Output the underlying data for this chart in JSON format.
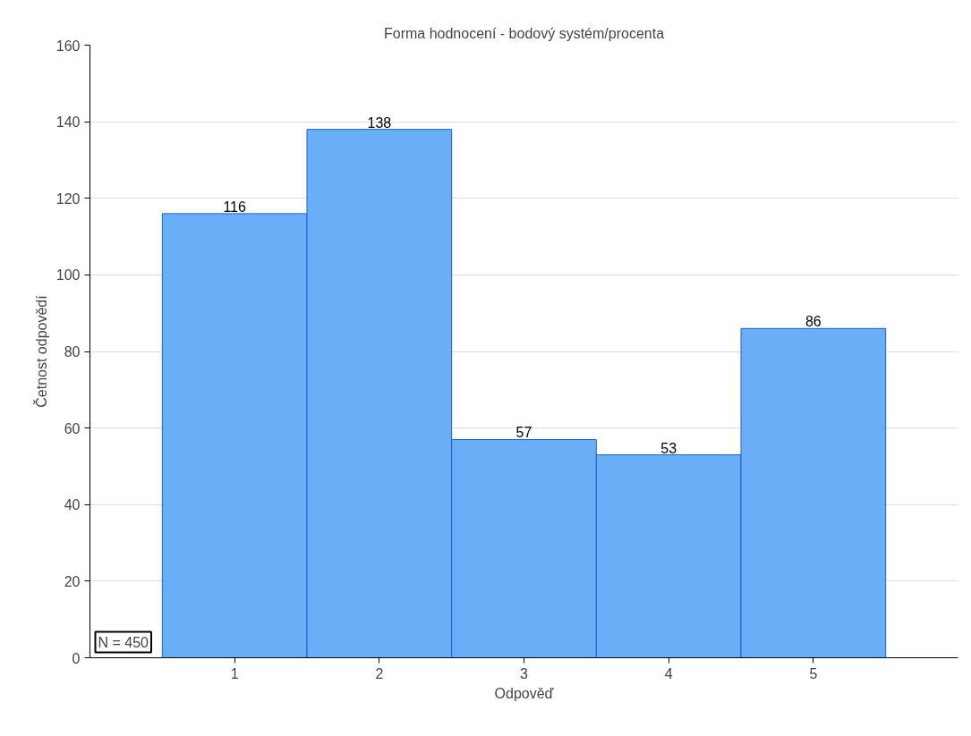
{
  "chart_data": {
    "type": "bar",
    "title": "Forma hodnocení - bodový systém/procenta",
    "xlabel": "Odpověď",
    "ylabel": "Četnost odpovědí",
    "categories": [
      "1",
      "2",
      "3",
      "4",
      "5"
    ],
    "values": [
      116,
      138,
      57,
      53,
      86
    ],
    "color": "#6aaef8",
    "data_labels": true,
    "ylim": [
      0,
      160
    ],
    "yticks": [
      0,
      20,
      40,
      60,
      80,
      100,
      120,
      140,
      160
    ],
    "grid": "y",
    "annotations": [
      "N = 450"
    ]
  }
}
